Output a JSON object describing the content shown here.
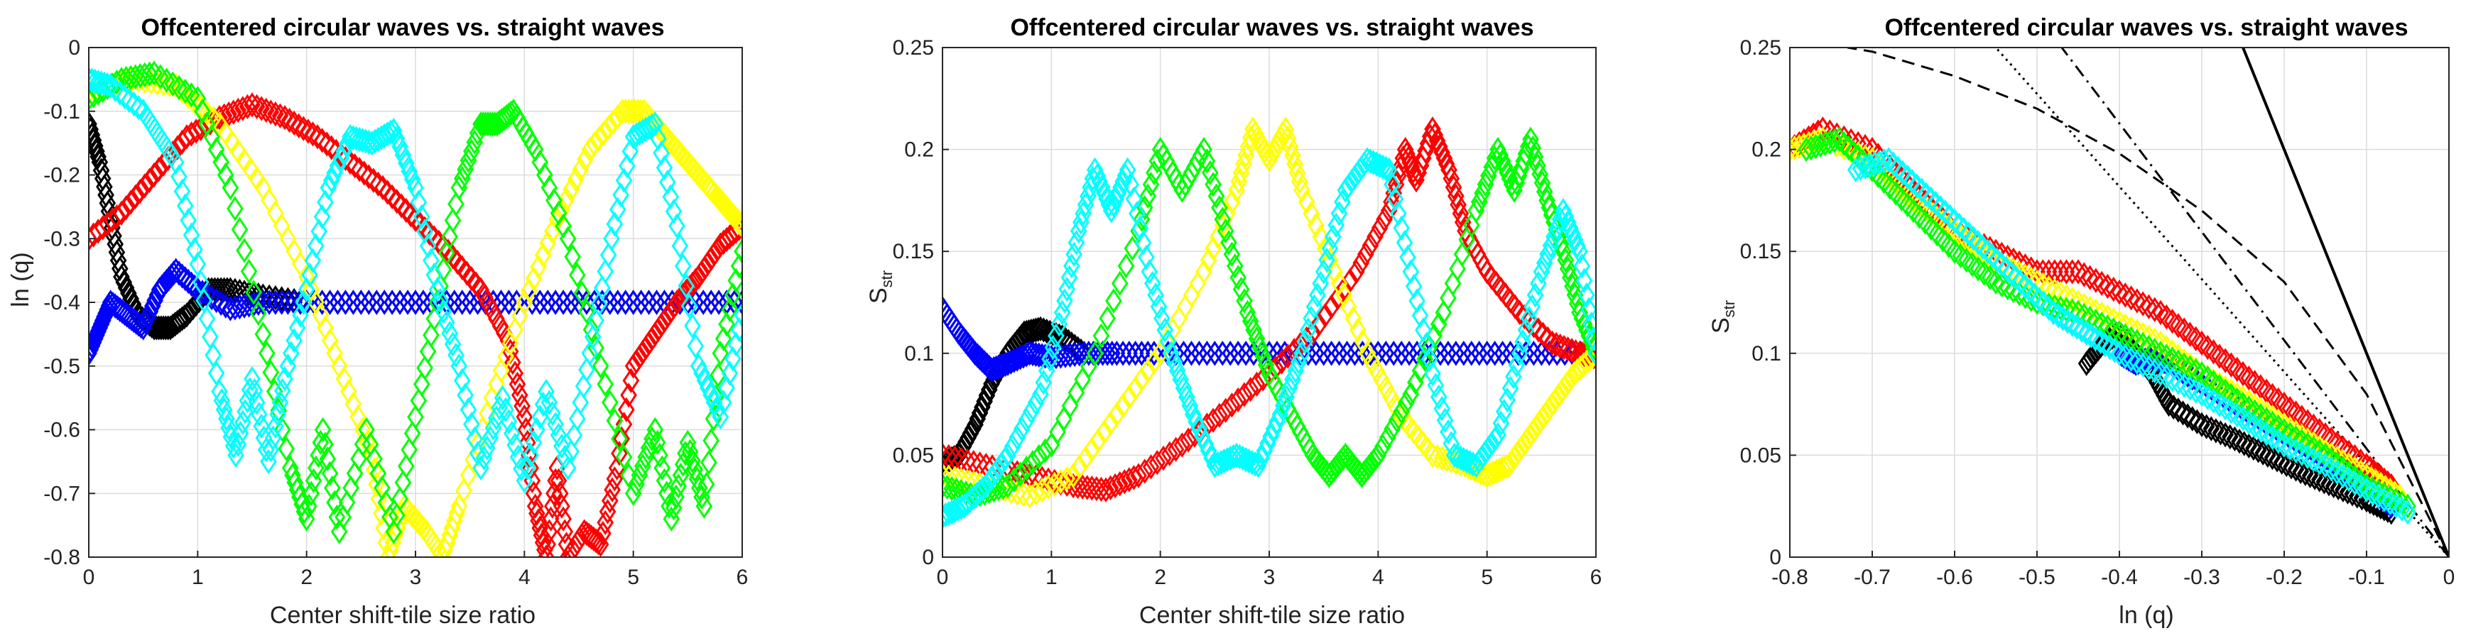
{
  "chart_data": [
    {
      "type": "scatter",
      "title": "Offcentered circular waves vs. straight waves",
      "xlabel": "Center shift-tile size ratio",
      "ylabel": "ln (q)",
      "xlim": [
        0,
        6
      ],
      "ylim": [
        -0.8,
        0
      ],
      "xticks": [
        0,
        1,
        2,
        3,
        4,
        5,
        6
      ],
      "yticks": [
        -0.8,
        -0.7,
        -0.6,
        -0.5,
        -0.4,
        -0.3,
        -0.2,
        -0.1,
        0
      ],
      "grid": true,
      "series": [
        {
          "name": "black",
          "color": "#000000",
          "x": [
            0,
            0.1,
            0.2,
            0.3,
            0.45,
            0.6,
            0.75,
            0.9,
            1.1,
            1.3,
            1.6,
            2.0,
            2.5,
            3,
            3.5,
            4,
            4.5,
            5,
            5.5,
            6
          ],
          "y": [
            -0.12,
            -0.18,
            -0.27,
            -0.36,
            -0.42,
            -0.44,
            -0.44,
            -0.42,
            -0.38,
            -0.38,
            -0.39,
            -0.4,
            -0.4,
            -0.4,
            -0.4,
            -0.4,
            -0.4,
            -0.4,
            -0.4,
            -0.4
          ]
        },
        {
          "name": "blue",
          "color": "#0000ff",
          "x": [
            0,
            0.1,
            0.2,
            0.35,
            0.5,
            0.65,
            0.8,
            1.0,
            1.3,
            1.6,
            2,
            2.5,
            3,
            3.5,
            4,
            4.5,
            5,
            5.5,
            6
          ],
          "y": [
            -0.48,
            -0.44,
            -0.4,
            -0.42,
            -0.44,
            -0.38,
            -0.35,
            -0.38,
            -0.41,
            -0.4,
            -0.4,
            -0.4,
            -0.4,
            -0.4,
            -0.4,
            -0.4,
            -0.4,
            -0.4,
            -0.4
          ]
        },
        {
          "name": "red",
          "color": "#ff0000",
          "x": [
            0,
            0.3,
            0.6,
            0.9,
            1.2,
            1.5,
            1.8,
            2.1,
            2.4,
            2.7,
            3.0,
            3.3,
            3.6,
            3.85,
            4.0,
            4.1,
            4.2,
            4.3,
            4.4,
            4.55,
            4.7,
            4.85,
            5.0,
            5.2,
            5.4,
            5.6,
            5.8,
            6.0
          ],
          "y": [
            -0.3,
            -0.26,
            -0.2,
            -0.14,
            -0.11,
            -0.09,
            -0.11,
            -0.14,
            -0.18,
            -0.22,
            -0.27,
            -0.32,
            -0.38,
            -0.46,
            -0.58,
            -0.72,
            -0.8,
            -0.66,
            -0.8,
            -0.76,
            -0.78,
            -0.66,
            -0.5,
            -0.45,
            -0.4,
            -0.36,
            -0.31,
            -0.28
          ]
        },
        {
          "name": "yellow",
          "color": "#ffff00",
          "x": [
            0,
            0.4,
            0.8,
            1.2,
            1.6,
            2.0,
            2.3,
            2.6,
            2.75,
            2.9,
            3.1,
            3.25,
            3.4,
            3.7,
            4.0,
            4.3,
            4.6,
            4.9,
            5.1,
            5.3,
            5.5,
            5.7,
            5.85,
            6.0
          ],
          "y": [
            -0.07,
            -0.05,
            -0.06,
            -0.12,
            -0.22,
            -0.36,
            -0.5,
            -0.64,
            -0.8,
            -0.72,
            -0.76,
            -0.8,
            -0.72,
            -0.55,
            -0.4,
            -0.27,
            -0.16,
            -0.1,
            -0.1,
            -0.14,
            -0.18,
            -0.22,
            -0.25,
            -0.28
          ]
        },
        {
          "name": "green",
          "color": "#00ff00",
          "x": [
            0,
            0.3,
            0.6,
            1.0,
            1.3,
            1.6,
            1.85,
            2.0,
            2.15,
            2.3,
            2.55,
            2.8,
            3.0,
            3.2,
            3.4,
            3.6,
            3.75,
            3.9,
            4.1,
            4.4,
            4.7,
            5.0,
            5.2,
            5.35,
            5.5,
            5.65,
            5.8,
            6.0
          ],
          "y": [
            -0.08,
            -0.05,
            -0.04,
            -0.08,
            -0.22,
            -0.45,
            -0.66,
            -0.74,
            -0.6,
            -0.76,
            -0.6,
            -0.76,
            -0.58,
            -0.4,
            -0.22,
            -0.12,
            -0.12,
            -0.1,
            -0.16,
            -0.3,
            -0.5,
            -0.7,
            -0.6,
            -0.74,
            -0.62,
            -0.72,
            -0.48,
            -0.32
          ]
        },
        {
          "name": "cyan",
          "color": "#00ffff",
          "x": [
            0,
            0.2,
            0.5,
            0.8,
            1.0,
            1.2,
            1.35,
            1.5,
            1.65,
            1.8,
            2.0,
            2.2,
            2.4,
            2.6,
            2.8,
            3.0,
            3.2,
            3.4,
            3.6,
            3.8,
            4.0,
            4.2,
            4.4,
            4.6,
            4.8,
            5.0,
            5.2,
            5.4,
            5.6,
            5.8,
            6.0
          ],
          "y": [
            -0.05,
            -0.06,
            -0.1,
            -0.18,
            -0.34,
            -0.54,
            -0.64,
            -0.52,
            -0.65,
            -0.52,
            -0.38,
            -0.22,
            -0.14,
            -0.15,
            -0.13,
            -0.22,
            -0.38,
            -0.5,
            -0.66,
            -0.55,
            -0.68,
            -0.54,
            -0.66,
            -0.48,
            -0.3,
            -0.14,
            -0.12,
            -0.28,
            -0.5,
            -0.58,
            -0.42
          ]
        }
      ]
    },
    {
      "type": "scatter",
      "title": "Offcentered circular waves vs. straight waves",
      "xlabel": "Center shift-tile size ratio",
      "ylabel": "S",
      "ylabel_subscript": "str",
      "xlim": [
        0,
        6
      ],
      "ylim": [
        0,
        0.25
      ],
      "xticks": [
        0,
        1,
        2,
        3,
        4,
        5,
        6
      ],
      "yticks": [
        0,
        0.05,
        0.1,
        0.15,
        0.2,
        0.25
      ],
      "grid": true,
      "series": [
        {
          "name": "black",
          "color": "#000000",
          "x": [
            0,
            0.15,
            0.3,
            0.45,
            0.6,
            0.75,
            0.9,
            1.1,
            1.3,
            1.6,
            2,
            2.5,
            3,
            3.5,
            4,
            4.5,
            5,
            5.5,
            6
          ],
          "y": [
            0.046,
            0.05,
            0.065,
            0.085,
            0.1,
            0.11,
            0.112,
            0.108,
            0.1,
            0.1,
            0.1,
            0.1,
            0.1,
            0.1,
            0.1,
            0.1,
            0.1,
            0.1,
            0.1
          ]
        },
        {
          "name": "blue",
          "color": "#0000ff",
          "x": [
            0,
            0.15,
            0.3,
            0.45,
            0.6,
            0.8,
            1.0,
            1.3,
            1.6,
            2,
            2.5,
            3,
            3.5,
            4,
            4.5,
            5,
            5.5,
            6
          ],
          "y": [
            0.122,
            0.11,
            0.1,
            0.092,
            0.095,
            0.1,
            0.098,
            0.1,
            0.1,
            0.1,
            0.1,
            0.1,
            0.1,
            0.1,
            0.1,
            0.1,
            0.1,
            0.1
          ]
        },
        {
          "name": "red",
          "color": "#ff0000",
          "x": [
            0,
            0.4,
            0.8,
            1.2,
            1.5,
            1.8,
            2.2,
            2.6,
            3.0,
            3.4,
            3.8,
            4.1,
            4.25,
            4.35,
            4.5,
            4.65,
            4.8,
            5.0,
            5.3,
            5.6,
            5.85,
            6.0
          ],
          "y": [
            0.05,
            0.045,
            0.04,
            0.035,
            0.033,
            0.04,
            0.055,
            0.072,
            0.09,
            0.11,
            0.14,
            0.17,
            0.2,
            0.185,
            0.21,
            0.19,
            0.16,
            0.14,
            0.12,
            0.105,
            0.1,
            0.098
          ]
        },
        {
          "name": "yellow",
          "color": "#ffff00",
          "x": [
            0,
            0.4,
            0.8,
            1.2,
            1.6,
            2.0,
            2.4,
            2.7,
            2.85,
            3.0,
            3.15,
            3.3,
            3.6,
            3.9,
            4.2,
            4.5,
            4.8,
            5.0,
            5.2,
            5.4,
            5.6,
            5.8,
            6.0
          ],
          "y": [
            0.04,
            0.035,
            0.03,
            0.04,
            0.07,
            0.1,
            0.14,
            0.18,
            0.21,
            0.195,
            0.21,
            0.18,
            0.14,
            0.1,
            0.07,
            0.05,
            0.045,
            0.04,
            0.045,
            0.06,
            0.075,
            0.09,
            0.1
          ]
        },
        {
          "name": "green",
          "color": "#00ff00",
          "x": [
            0,
            0.3,
            0.6,
            1.0,
            1.4,
            1.8,
            2.0,
            2.2,
            2.4,
            2.6,
            2.8,
            3.0,
            3.2,
            3.4,
            3.55,
            3.7,
            3.85,
            4.0,
            4.3,
            4.6,
            4.9,
            5.1,
            5.25,
            5.4,
            5.55,
            5.7,
            5.85,
            6.0
          ],
          "y": [
            0.035,
            0.03,
            0.035,
            0.055,
            0.1,
            0.16,
            0.2,
            0.18,
            0.2,
            0.16,
            0.12,
            0.09,
            0.07,
            0.05,
            0.04,
            0.05,
            0.04,
            0.05,
            0.08,
            0.12,
            0.17,
            0.2,
            0.18,
            0.205,
            0.175,
            0.15,
            0.12,
            0.1
          ]
        },
        {
          "name": "cyan",
          "color": "#00ffff",
          "x": [
            0,
            0.2,
            0.4,
            0.6,
            0.9,
            1.1,
            1.25,
            1.4,
            1.55,
            1.7,
            1.9,
            2.1,
            2.3,
            2.5,
            2.7,
            2.9,
            3.1,
            3.3,
            3.5,
            3.7,
            3.9,
            4.1,
            4.3,
            4.5,
            4.7,
            4.9,
            5.1,
            5.3,
            5.5,
            5.7,
            5.85,
            6.0
          ],
          "y": [
            0.02,
            0.025,
            0.035,
            0.05,
            0.08,
            0.12,
            0.16,
            0.19,
            0.17,
            0.19,
            0.14,
            0.1,
            0.07,
            0.045,
            0.05,
            0.045,
            0.07,
            0.1,
            0.14,
            0.18,
            0.195,
            0.19,
            0.14,
            0.09,
            0.05,
            0.045,
            0.06,
            0.1,
            0.14,
            0.17,
            0.15,
            0.1
          ]
        }
      ]
    },
    {
      "type": "scatter",
      "title": "Offcentered circular waves vs. straight waves",
      "xlabel": "ln (q)",
      "ylabel": "S",
      "ylabel_subscript": "str",
      "xlim": [
        -0.8,
        0
      ],
      "ylim": [
        0,
        0.25
      ],
      "xticks": [
        -0.8,
        -0.7,
        -0.6,
        -0.5,
        -0.4,
        -0.3,
        -0.2,
        -0.1,
        0
      ],
      "yticks": [
        0,
        0.05,
        0.1,
        0.15,
        0.2,
        0.25
      ],
      "grid": true,
      "reference_lines": [
        {
          "style": "solid",
          "x": [
            0,
            -0.25
          ],
          "y": [
            0,
            0.25
          ]
        },
        {
          "style": "dashdot",
          "x": [
            0,
            -0.47
          ],
          "y": [
            0,
            0.25
          ]
        },
        {
          "style": "dotted",
          "x": [
            0,
            -0.55
          ],
          "y": [
            0,
            0.25
          ]
        },
        {
          "style": "dashed",
          "x": [
            0,
            -0.1,
            -0.2,
            -0.3,
            -0.4,
            -0.5,
            -0.6,
            -0.7,
            -0.73
          ],
          "y": [
            0,
            0.08,
            0.135,
            0.17,
            0.198,
            0.22,
            0.236,
            0.248,
            0.25
          ]
        }
      ],
      "series": [
        {
          "name": "black",
          "color": "#000000",
          "x": [
            -0.44,
            -0.42,
            -0.4,
            -0.38,
            -0.36,
            -0.34,
            -0.3,
            -0.26,
            -0.22,
            -0.18,
            -0.14,
            -0.1,
            -0.07
          ],
          "y": [
            0.095,
            0.105,
            0.11,
            0.1,
            0.09,
            0.075,
            0.065,
            0.058,
            0.05,
            0.042,
            0.035,
            0.028,
            0.022
          ]
        },
        {
          "name": "blue",
          "color": "#0000ff",
          "x": [
            -0.48,
            -0.44,
            -0.4,
            -0.38,
            -0.36,
            -0.34,
            -0.3,
            -0.25,
            -0.2,
            -0.15,
            -0.1,
            -0.07
          ],
          "y": [
            0.12,
            0.11,
            0.1,
            0.095,
            0.098,
            0.095,
            0.085,
            0.072,
            0.06,
            0.048,
            0.035,
            0.025
          ]
        },
        {
          "name": "red",
          "color": "#ff0000",
          "x": [
            -0.8,
            -0.76,
            -0.7,
            -0.65,
            -0.6,
            -0.55,
            -0.5,
            -0.45,
            -0.4,
            -0.35,
            -0.3,
            -0.25,
            -0.2,
            -0.15,
            -0.1,
            -0.07
          ],
          "y": [
            0.2,
            0.21,
            0.2,
            0.18,
            0.16,
            0.15,
            0.14,
            0.14,
            0.13,
            0.12,
            0.105,
            0.09,
            0.075,
            0.06,
            0.045,
            0.035
          ]
        },
        {
          "name": "yellow",
          "color": "#ffff00",
          "x": [
            -0.8,
            -0.76,
            -0.7,
            -0.65,
            -0.6,
            -0.55,
            -0.5,
            -0.45,
            -0.4,
            -0.35,
            -0.3,
            -0.25,
            -0.2,
            -0.15,
            -0.1,
            -0.06
          ],
          "y": [
            0.2,
            0.205,
            0.195,
            0.175,
            0.16,
            0.145,
            0.135,
            0.125,
            0.115,
            0.105,
            0.09,
            0.078,
            0.065,
            0.052,
            0.04,
            0.03
          ]
        },
        {
          "name": "green",
          "color": "#00ff00",
          "x": [
            -0.78,
            -0.74,
            -0.7,
            -0.65,
            -0.6,
            -0.55,
            -0.5,
            -0.45,
            -0.4,
            -0.35,
            -0.3,
            -0.25,
            -0.2,
            -0.15,
            -0.1,
            -0.05
          ],
          "y": [
            0.2,
            0.205,
            0.19,
            0.17,
            0.15,
            0.135,
            0.125,
            0.12,
            0.11,
            0.1,
            0.09,
            0.075,
            0.062,
            0.05,
            0.035,
            0.025
          ]
        },
        {
          "name": "cyan",
          "color": "#00ffff",
          "x": [
            -0.72,
            -0.68,
            -0.64,
            -0.6,
            -0.56,
            -0.52,
            -0.48,
            -0.44,
            -0.4,
            -0.35,
            -0.3,
            -0.25,
            -0.2,
            -0.15,
            -0.1,
            -0.05
          ],
          "y": [
            0.19,
            0.195,
            0.18,
            0.165,
            0.15,
            0.135,
            0.12,
            0.11,
            0.1,
            0.09,
            0.08,
            0.068,
            0.055,
            0.045,
            0.033,
            0.022
          ]
        }
      ]
    }
  ]
}
